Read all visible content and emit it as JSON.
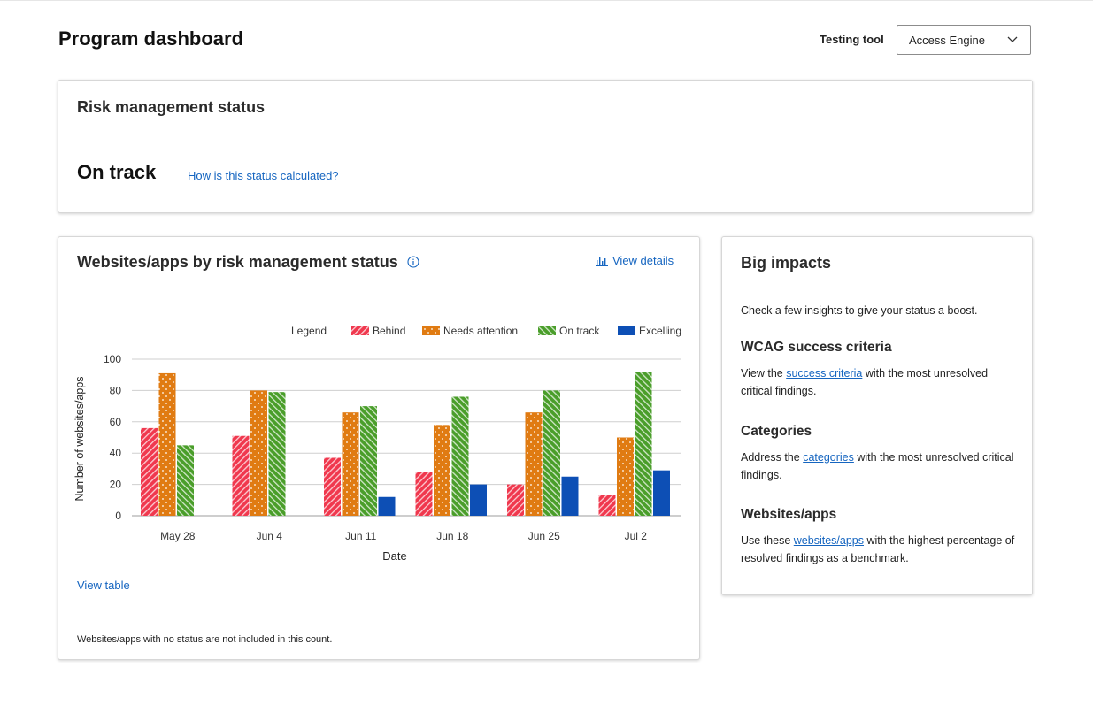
{
  "header": {
    "title": "Program dashboard",
    "testing_tool_label": "Testing tool",
    "testing_tool_value": "Access Engine"
  },
  "risk_card": {
    "heading": "Risk management status",
    "status": "On track",
    "link": "How is this status calculated?"
  },
  "chart_card": {
    "heading": "Websites/apps by risk management status",
    "view_details": "View details",
    "view_table": "View table",
    "footnote": "Websites/apps with no status are not included in this count."
  },
  "chart_data": {
    "type": "bar",
    "categories": [
      "May 28",
      "Jun 4",
      "Jun 11",
      "Jun 18",
      "Jun 25",
      "Jul 2"
    ],
    "series": [
      {
        "name": "Behind",
        "values": [
          56,
          51,
          37,
          28,
          20,
          13
        ]
      },
      {
        "name": "Needs attention",
        "values": [
          91,
          80,
          66,
          58,
          66,
          50
        ]
      },
      {
        "name": "On track",
        "values": [
          45,
          79,
          70,
          76,
          80,
          92
        ]
      },
      {
        "name": "Excelling",
        "values": [
          0,
          0,
          12,
          20,
          25,
          29
        ]
      }
    ],
    "legend_title": "Legend",
    "xlabel": "Date",
    "ylabel": "Number of websites/apps",
    "ylim": [
      0,
      100
    ],
    "yticks": [
      0,
      20,
      40,
      60,
      80,
      100
    ],
    "grid": true,
    "legend_position": "top-right"
  },
  "colors": {
    "behind": "#f0384e",
    "needs_attention": "#e07b12",
    "on_track": "#4a9e2a",
    "excelling": "#0d4fb5",
    "link": "#1565c0"
  },
  "impacts": {
    "title": "Big impacts",
    "intro": "Check a few insights to give your status a boost.",
    "sections": [
      {
        "heading": "WCAG success criteria",
        "pre": "View the ",
        "link": "success criteria",
        "post": " with the most unresolved critical findings."
      },
      {
        "heading": "Categories",
        "pre": "Address the ",
        "link": "categories",
        "post": " with the most unresolved critical findings."
      },
      {
        "heading": "Websites/apps",
        "pre": "Use these ",
        "link": "websites/apps",
        "post": " with the highest percentage of resolved findings as a benchmark."
      }
    ]
  },
  "icons": [
    "chevron-down-icon",
    "info-icon",
    "bar-chart-icon"
  ]
}
